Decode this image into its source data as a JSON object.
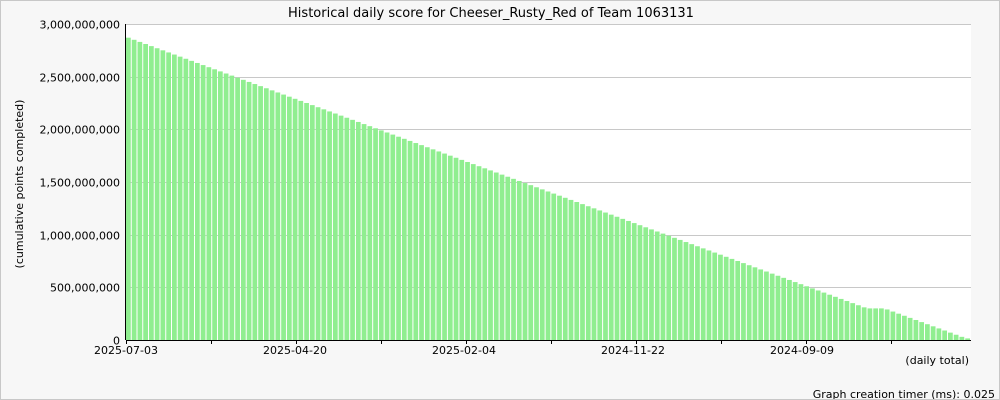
{
  "chart_data": {
    "type": "bar",
    "title": "Historical daily score for Cheeser_Rusty_Red of Team 1063131",
    "ylabel": "(cumulative points completed)",
    "xlabel": "(daily total)",
    "ylim": [
      0,
      3000000000
    ],
    "y_ticks": [
      0,
      500000000,
      1000000000,
      1500000000,
      2000000000,
      2500000000,
      3000000000
    ],
    "y_tick_labels": [
      "0",
      "500,000,000",
      "1,000,000,000",
      "1,500,000,000",
      "2,000,000,000",
      "2,500,000,000",
      "3,000,000,000"
    ],
    "x_tick_labels": [
      "2025-07-03",
      "2025-04-20",
      "2025-02-04",
      "2024-11-22",
      "2024-09-09"
    ],
    "grid": true,
    "bar_color": "#90ee90",
    "order": "newest-first",
    "series": [
      {
        "values": [
          2870000000,
          2850000000,
          2830000000,
          2810000000,
          2790000000,
          2770000000,
          2750000000,
          2730000000,
          2710000000,
          2690000000,
          2670000000,
          2650000000,
          2630000000,
          2610000000,
          2590000000,
          2570000000,
          2550000000,
          2530000000,
          2510000000,
          2490000000,
          2470000000,
          2450000000,
          2430000000,
          2410000000,
          2390000000,
          2370000000,
          2350000000,
          2330000000,
          2310000000,
          2290000000,
          2270000000,
          2250000000,
          2230000000,
          2210000000,
          2190000000,
          2170000000,
          2150000000,
          2130000000,
          2110000000,
          2090000000,
          2070000000,
          2050000000,
          2030000000,
          2010000000,
          1990000000,
          1970000000,
          1950000000,
          1930000000,
          1910000000,
          1890000000,
          1870000000,
          1850000000,
          1830000000,
          1810000000,
          1790000000,
          1770000000,
          1750000000,
          1730000000,
          1710000000,
          1690000000,
          1670000000,
          1650000000,
          1630000000,
          1610000000,
          1590000000,
          1570000000,
          1550000000,
          1530000000,
          1510000000,
          1490000000,
          1470000000,
          1450000000,
          1430000000,
          1410000000,
          1390000000,
          1370000000,
          1350000000,
          1330000000,
          1310000000,
          1290000000,
          1270000000,
          1250000000,
          1230000000,
          1210000000,
          1190000000,
          1170000000,
          1150000000,
          1130000000,
          1110000000,
          1090000000,
          1070000000,
          1050000000,
          1030000000,
          1010000000,
          990000000,
          970000000,
          950000000,
          930000000,
          910000000,
          890000000,
          870000000,
          850000000,
          830000000,
          810000000,
          790000000,
          770000000,
          750000000,
          730000000,
          710000000,
          690000000,
          670000000,
          650000000,
          630000000,
          610000000,
          590000000,
          570000000,
          550000000,
          530000000,
          510000000,
          490000000,
          470000000,
          450000000,
          430000000,
          410000000,
          390000000,
          370000000,
          350000000,
          330000000,
          310000000,
          300000000,
          300000000,
          300000000,
          290000000,
          270000000,
          250000000,
          230000000,
          210000000,
          190000000,
          170000000,
          150000000,
          130000000,
          110000000,
          90000000,
          70000000,
          50000000,
          30000000,
          15000000
        ]
      }
    ]
  },
  "footer": {
    "timer_text": "Graph creation timer (ms): 0.025"
  }
}
